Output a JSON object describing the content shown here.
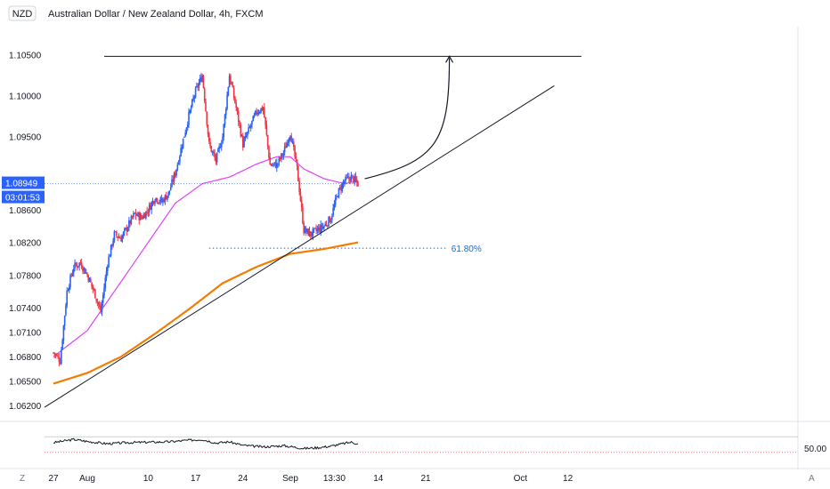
{
  "header": {
    "currency_badge": "NZD",
    "title": "Australian Dollar / New Zealand Dollar, 4h, FXCM"
  },
  "price_tag": {
    "price": "1.08949",
    "countdown": "03:01:53"
  },
  "fib_label": "61.80%",
  "bottom_left_icon": "Z",
  "bottom_right_icon": "A",
  "colors": {
    "up": "#2962ff",
    "down": "#f23645",
    "ma_short": "#e040fb",
    "ma_long": "#f57c00",
    "fib": "#1e66c8",
    "tag_bg": "#2962ff"
  },
  "chart_data": {
    "type": "candlestick",
    "symbol": "AUDNZD",
    "timeframe": "4h",
    "ylim": [
      1.0605,
      1.1068
    ],
    "y_ticks": [
      1.105,
      1.1,
      1.095,
      1.086,
      1.082,
      1.078,
      1.074,
      1.071,
      1.068,
      1.065,
      1.062
    ],
    "y_tick_labels": [
      "1.10500",
      "1.10000",
      "1.09500",
      "1.08600",
      "1.08200",
      "1.07800",
      "1.07400",
      "1.07100",
      "1.06800",
      "1.06500",
      "1.06200"
    ],
    "x_ticks": [
      {
        "label": "27",
        "day": 0
      },
      {
        "label": "Aug",
        "day": 5
      },
      {
        "label": "10",
        "day": 14
      },
      {
        "label": "17",
        "day": 21
      },
      {
        "label": "24",
        "day": 28
      },
      {
        "label": "Sep",
        "day": 35
      },
      {
        "label": "13:30",
        "day": 41.5
      },
      {
        "label": "14",
        "day": 48
      },
      {
        "label": "21",
        "day": 55
      },
      {
        "label": "Oct",
        "day": 69
      },
      {
        "label": "12",
        "day": 76
      }
    ],
    "price_waypoints": [
      [
        0,
        1.0685
      ],
      [
        1,
        1.0675
      ],
      [
        2,
        1.076
      ],
      [
        3,
        1.079
      ],
      [
        4,
        1.0795
      ],
      [
        5,
        1.078
      ],
      [
        6,
        1.076
      ],
      [
        7,
        1.0735
      ],
      [
        8,
        1.0795
      ],
      [
        9,
        1.083
      ],
      [
        10,
        1.0825
      ],
      [
        11,
        1.084
      ],
      [
        12,
        1.0855
      ],
      [
        13,
        1.085
      ],
      [
        14,
        1.086
      ],
      [
        15,
        1.0875
      ],
      [
        16,
        1.087
      ],
      [
        17,
        1.088
      ],
      [
        18,
        1.0905
      ],
      [
        19,
        1.094
      ],
      [
        20,
        1.0975
      ],
      [
        21,
        1.1005
      ],
      [
        22,
        1.1025
      ],
      [
        23,
        1.094
      ],
      [
        24,
        1.092
      ],
      [
        25,
        1.095
      ],
      [
        26,
        1.1025
      ],
      [
        27,
        1.0985
      ],
      [
        28,
        1.094
      ],
      [
        29,
        1.096
      ],
      [
        30,
        1.098
      ],
      [
        31,
        1.0985
      ],
      [
        32,
        1.0915
      ],
      [
        33,
        1.0915
      ],
      [
        34,
        1.093
      ],
      [
        35,
        1.0955
      ],
      [
        36,
        1.091
      ],
      [
        37,
        1.0835
      ],
      [
        38,
        1.083
      ],
      [
        39,
        1.0835
      ],
      [
        40,
        1.084
      ],
      [
        41,
        1.085
      ],
      [
        42,
        1.088
      ],
      [
        43,
        1.0895
      ],
      [
        44,
        1.09
      ],
      [
        45,
        1.0892
      ]
    ],
    "ma_short_waypoints": [
      [
        0,
        1.068
      ],
      [
        5,
        1.0712
      ],
      [
        10,
        1.0772
      ],
      [
        14,
        1.082
      ],
      [
        18,
        1.0868
      ],
      [
        22,
        1.0892
      ],
      [
        26,
        1.09
      ],
      [
        30,
        1.0916
      ],
      [
        33,
        1.0925
      ],
      [
        35,
        1.0925
      ],
      [
        37,
        1.091
      ],
      [
        40,
        1.0898
      ],
      [
        43,
        1.0892
      ],
      [
        45,
        1.0895
      ]
    ],
    "ma_long_waypoints": [
      [
        0,
        1.0647
      ],
      [
        5,
        1.066
      ],
      [
        10,
        1.068
      ],
      [
        15,
        1.0708
      ],
      [
        20,
        1.0738
      ],
      [
        25,
        1.077
      ],
      [
        30,
        1.079
      ],
      [
        35,
        1.0806
      ],
      [
        40,
        1.0812
      ],
      [
        45,
        1.082
      ]
    ],
    "trendline": [
      [
        0,
        1.0618
      ],
      [
        74,
        1.1012
      ]
    ],
    "resistance_level": 1.1048,
    "resistance_span": [
      7.5,
      78
    ],
    "fib_level": 1.0813,
    "fib_span": [
      23,
      58
    ],
    "projection_arrow": [
      [
        46,
        1.0898
      ],
      [
        58.5,
        1.1048
      ]
    ],
    "oscillator": {
      "upper_band": 70,
      "lower_band": 30,
      "mid_label": "50.00",
      "mid": 50,
      "waypoints": [
        [
          0,
          55
        ],
        [
          3,
          63
        ],
        [
          5,
          58
        ],
        [
          8,
          52
        ],
        [
          11,
          55
        ],
        [
          14,
          56
        ],
        [
          17,
          57
        ],
        [
          20,
          61
        ],
        [
          22,
          63
        ],
        [
          24,
          54
        ],
        [
          26,
          57
        ],
        [
          28,
          48
        ],
        [
          31,
          44
        ],
        [
          34,
          47
        ],
        [
          37,
          40
        ],
        [
          39,
          42
        ],
        [
          41,
          46
        ],
        [
          43,
          53
        ],
        [
          44,
          56
        ],
        [
          45,
          52
        ]
      ]
    }
  }
}
